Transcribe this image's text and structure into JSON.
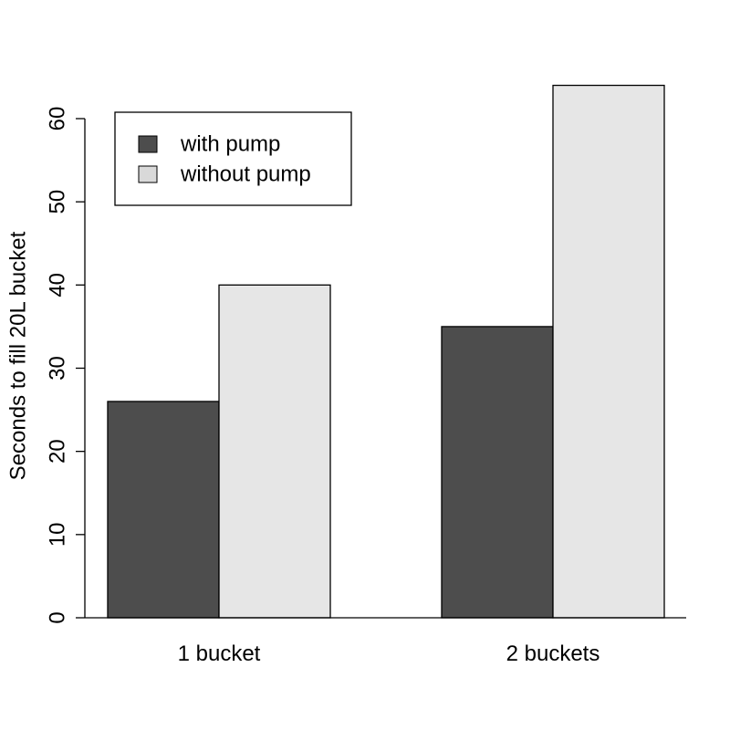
{
  "chart_data": {
    "type": "bar",
    "categories": [
      "1 bucket",
      "2 buckets"
    ],
    "series": [
      {
        "name": "with pump",
        "values": [
          26,
          35
        ],
        "color": "#4d4d4d"
      },
      {
        "name": "without pump",
        "values": [
          40,
          64
        ],
        "color": "#e6e6e6"
      }
    ],
    "title": "",
    "xlabel": "",
    "ylabel": "Seconds to fill 20L bucket",
    "ylim": [
      0,
      60
    ],
    "yticks": [
      "0",
      "10",
      "20",
      "30",
      "40",
      "50",
      "60"
    ],
    "legend": {
      "position": "top-left",
      "entries": [
        "with pump",
        "without pump"
      ],
      "swatch_colors": [
        "#4d4d4d",
        "#d9d9d9"
      ]
    },
    "grid": false
  }
}
